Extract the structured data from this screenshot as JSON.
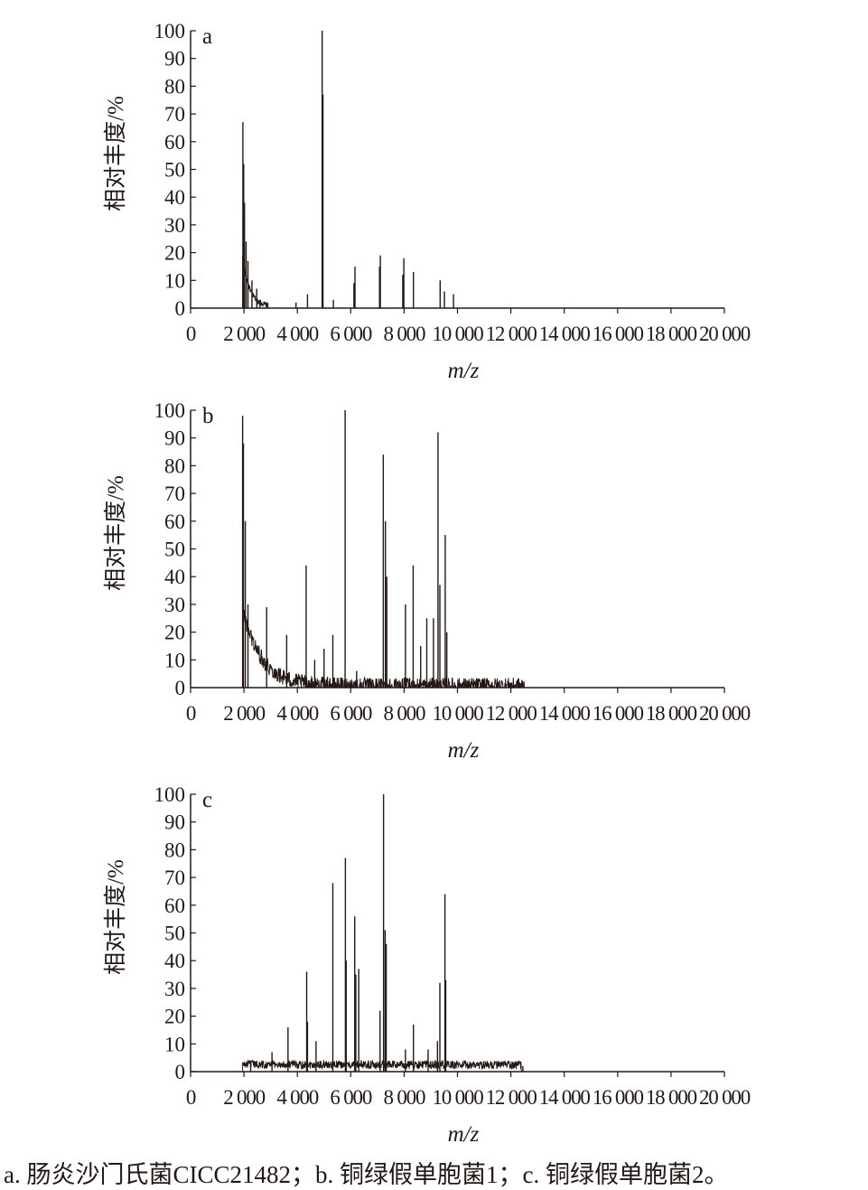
{
  "caption": "a. 肠炎沙门氏菌CICC21482；b. 铜绿假单胞菌1；c. 铜绿假单胞菌2。",
  "colors": {
    "line": "#231815",
    "axis": "#231815",
    "background": "#ffffff"
  },
  "chart_data": [
    {
      "type": "line",
      "panel_label": "a",
      "ylabel": "相对丰度/%",
      "xlabel": "m/z",
      "xlim": [
        0,
        20000
      ],
      "ylim": [
        0,
        100
      ],
      "x_tick_labels": [
        "0",
        "2 000",
        "4 000",
        "6 000",
        "8 000",
        "10 000",
        "12 000",
        "14 000",
        "16 000",
        "18 000",
        "20 000"
      ],
      "y_tick_labels": [
        "0",
        "10",
        "20",
        "30",
        "40",
        "50",
        "60",
        "70",
        "80",
        "90",
        "100"
      ],
      "grid": false,
      "baseline": {
        "start": 1950,
        "end": 2900,
        "level": 18,
        "decay": 260,
        "noise": 2
      },
      "peaks": [
        {
          "x": 1960,
          "y": 67
        },
        {
          "x": 1990,
          "y": 52
        },
        {
          "x": 2020,
          "y": 38
        },
        {
          "x": 2080,
          "y": 24
        },
        {
          "x": 2150,
          "y": 17
        },
        {
          "x": 2300,
          "y": 10
        },
        {
          "x": 2480,
          "y": 7
        },
        {
          "x": 2600,
          "y": 3
        },
        {
          "x": 3950,
          "y": 2
        },
        {
          "x": 4380,
          "y": 5
        },
        {
          "x": 4930,
          "y": 100
        },
        {
          "x": 4960,
          "y": 77
        },
        {
          "x": 5350,
          "y": 3
        },
        {
          "x": 6120,
          "y": 9
        },
        {
          "x": 6160,
          "y": 15
        },
        {
          "x": 7080,
          "y": 15
        },
        {
          "x": 7110,
          "y": 19
        },
        {
          "x": 7950,
          "y": 12
        },
        {
          "x": 7990,
          "y": 18
        },
        {
          "x": 8350,
          "y": 13
        },
        {
          "x": 9350,
          "y": 10
        },
        {
          "x": 9510,
          "y": 6
        },
        {
          "x": 9850,
          "y": 5
        }
      ]
    },
    {
      "type": "line",
      "panel_label": "b",
      "ylabel": "相对丰度/%",
      "xlabel": "m/z",
      "xlim": [
        0,
        20000
      ],
      "ylim": [
        0,
        100
      ],
      "x_tick_labels": [
        "0",
        "2 000",
        "4 000",
        "6 000",
        "8 000",
        "10 000",
        "12 000",
        "14 000",
        "16 000",
        "18 000",
        "20 000"
      ],
      "y_tick_labels": [
        "0",
        "10",
        "20",
        "30",
        "40",
        "50",
        "60",
        "70",
        "80",
        "90",
        "100"
      ],
      "grid": false,
      "baseline": {
        "start": 1950,
        "end": 12500,
        "level": 28,
        "decay": 700,
        "noise": 6
      },
      "peaks": [
        {
          "x": 1950,
          "y": 98
        },
        {
          "x": 1980,
          "y": 88
        },
        {
          "x": 2050,
          "y": 60
        },
        {
          "x": 2150,
          "y": 30
        },
        {
          "x": 2850,
          "y": 29
        },
        {
          "x": 3600,
          "y": 19
        },
        {
          "x": 4330,
          "y": 44
        },
        {
          "x": 4650,
          "y": 10
        },
        {
          "x": 5000,
          "y": 14
        },
        {
          "x": 5330,
          "y": 19
        },
        {
          "x": 5790,
          "y": 100
        },
        {
          "x": 6220,
          "y": 6
        },
        {
          "x": 7220,
          "y": 84
        },
        {
          "x": 7300,
          "y": 60
        },
        {
          "x": 7350,
          "y": 40
        },
        {
          "x": 8050,
          "y": 30
        },
        {
          "x": 8340,
          "y": 44
        },
        {
          "x": 8620,
          "y": 15
        },
        {
          "x": 8850,
          "y": 25
        },
        {
          "x": 9100,
          "y": 25
        },
        {
          "x": 9270,
          "y": 92
        },
        {
          "x": 9340,
          "y": 37
        },
        {
          "x": 9540,
          "y": 55
        },
        {
          "x": 9600,
          "y": 20
        },
        {
          "x": 10500,
          "y": 2
        }
      ]
    },
    {
      "type": "line",
      "panel_label": "c",
      "ylabel": "相对丰度/%",
      "xlabel": "m/z",
      "xlim": [
        0,
        20000
      ],
      "ylim": [
        0,
        100
      ],
      "x_tick_labels": [
        "0",
        "2 000",
        "4 000",
        "6 000",
        "8 000",
        "10 000",
        "12 000",
        "14 000",
        "16 000",
        "18 000",
        "20 000"
      ],
      "y_tick_labels": [
        "0",
        "10",
        "20",
        "30",
        "40",
        "50",
        "60",
        "70",
        "80",
        "90",
        "100"
      ],
      "grid": false,
      "baseline": {
        "start": 1950,
        "end": 12400,
        "level": 2,
        "decay": 100000,
        "noise": 3
      },
      "peaks": [
        {
          "x": 2250,
          "y": 4
        },
        {
          "x": 3050,
          "y": 7
        },
        {
          "x": 3650,
          "y": 16
        },
        {
          "x": 4350,
          "y": 36
        },
        {
          "x": 4380,
          "y": 18
        },
        {
          "x": 4700,
          "y": 11
        },
        {
          "x": 5330,
          "y": 68
        },
        {
          "x": 5800,
          "y": 77
        },
        {
          "x": 5830,
          "y": 40
        },
        {
          "x": 6150,
          "y": 56
        },
        {
          "x": 6190,
          "y": 35
        },
        {
          "x": 6300,
          "y": 37
        },
        {
          "x": 7100,
          "y": 22
        },
        {
          "x": 7230,
          "y": 100
        },
        {
          "x": 7290,
          "y": 51
        },
        {
          "x": 7330,
          "y": 46
        },
        {
          "x": 8050,
          "y": 8
        },
        {
          "x": 8350,
          "y": 17
        },
        {
          "x": 8900,
          "y": 8
        },
        {
          "x": 9250,
          "y": 11
        },
        {
          "x": 9340,
          "y": 32
        },
        {
          "x": 9530,
          "y": 64
        },
        {
          "x": 9560,
          "y": 33
        },
        {
          "x": 12450,
          "y": 2
        }
      ]
    }
  ]
}
